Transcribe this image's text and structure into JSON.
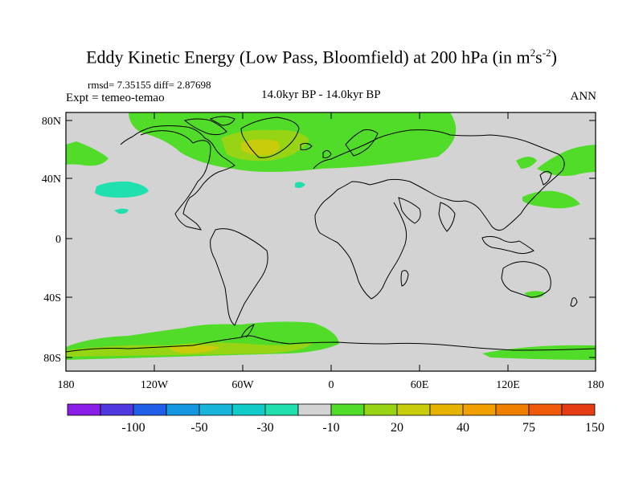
{
  "header": {
    "title_main": "Eddy Kinetic Energy (Low Pass, Bloomfield) at 200 hPa (in m",
    "title_sup1": "2",
    "title_mid": "s",
    "title_sup2": "-2",
    "title_end": ")",
    "stats": "rmsd= 7.35155 diff= 2.87698",
    "expt": "Expt = temeo-temao",
    "subtitle": "14.0kyr BP - 14.0kyr BP",
    "season": "ANN"
  },
  "map": {
    "background_color": "#d3d3d3",
    "lat_ticks": [
      "80N",
      "40N",
      "0",
      "40S",
      "80S"
    ],
    "lon_ticks": [
      "180",
      "120W",
      "60W",
      "0",
      "60E",
      "120E",
      "180"
    ]
  },
  "colorbar": {
    "labels": [
      "-100",
      "-50",
      "-30",
      "-10",
      "20",
      "40",
      "75",
      "150"
    ],
    "colors": [
      "#8a1ee6",
      "#5038e0",
      "#2060e8",
      "#1496e0",
      "#18b4dc",
      "#10ccc8",
      "#20e0b0",
      "#d3d3d3",
      "#50dc28",
      "#96d414",
      "#c8cc0a",
      "#e6b400",
      "#f0a000",
      "#f07e00",
      "#ee5a0a",
      "#e63c14"
    ]
  }
}
